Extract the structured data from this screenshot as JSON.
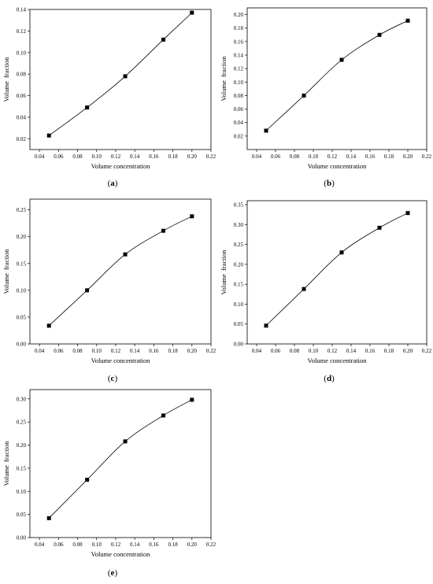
{
  "chart_data": [
    {
      "type": "line",
      "panel_label": "(a)",
      "xlabel": "Volume concentration",
      "ylabel": "Volume  fraction",
      "xlim": [
        0.03,
        0.22
      ],
      "ylim": [
        0.01,
        0.14
      ],
      "xticks": [
        "0.04",
        "0.06",
        "0.08",
        "0.10",
        "0.12",
        "0.14",
        "0.16",
        "0.18",
        "0.20",
        "0.22"
      ],
      "yticks": [
        "0.02",
        "0.04",
        "0.06",
        "0.08",
        "0.10",
        "0.12",
        "0.14"
      ],
      "x": [
        0.05,
        0.09,
        0.13,
        0.17,
        0.2
      ],
      "y": [
        0.023,
        0.049,
        0.078,
        0.112,
        0.137
      ],
      "marker": "square",
      "grid": false
    },
    {
      "type": "line",
      "panel_label": "(b)",
      "xlabel": "Volume concentration",
      "ylabel": "Volume  fraction",
      "xlim": [
        0.03,
        0.22
      ],
      "ylim": [
        0.0,
        0.21
      ],
      "xticks": [
        "0.04",
        "0.06",
        "0.08",
        "0.10",
        "0.12",
        "0.14",
        "0.16",
        "0.18",
        "0.20",
        "0.22"
      ],
      "yticks": [
        "0.02",
        "0.04",
        "0.06",
        "0.08",
        "0.10",
        "0.12",
        "0.14",
        "0.16",
        "0.18",
        "0.20"
      ],
      "x": [
        0.05,
        0.09,
        0.13,
        0.17,
        0.2
      ],
      "y": [
        0.028,
        0.08,
        0.133,
        0.17,
        0.191
      ],
      "marker": "square",
      "grid": false
    },
    {
      "type": "line",
      "panel_label": "(c)",
      "xlabel": "Volume concentration",
      "ylabel": "Volume  fraction",
      "xlim": [
        0.03,
        0.22
      ],
      "ylim": [
        0.0,
        0.27
      ],
      "xticks": [
        "0.04",
        "0.06",
        "0.08",
        "0.10",
        "0.12",
        "0.14",
        "0.16",
        "0.18",
        "0.20",
        "0.22"
      ],
      "yticks": [
        "0.00",
        "0.05",
        "0.10",
        "0.15",
        "0.20",
        "0.25"
      ],
      "x": [
        0.05,
        0.09,
        0.13,
        0.17,
        0.2
      ],
      "y": [
        0.034,
        0.1,
        0.167,
        0.211,
        0.238
      ],
      "marker": "square",
      "grid": false
    },
    {
      "type": "line",
      "panel_label": "(d)",
      "xlabel": "Volume concentration",
      "ylabel": "Volume  fraction",
      "xlim": [
        0.03,
        0.22
      ],
      "ylim": [
        0.0,
        0.36
      ],
      "xticks": [
        "0.04",
        "0.06",
        "0.08",
        "0.10",
        "0.12",
        "0.14",
        "0.16",
        "0.18",
        "0.20",
        "0.22"
      ],
      "yticks": [
        "0.00",
        "0.05",
        "0.10",
        "0.15",
        "0.20",
        "0.25",
        "0.30",
        "0.35"
      ],
      "x": [
        0.05,
        0.09,
        0.13,
        0.17,
        0.2
      ],
      "y": [
        0.046,
        0.138,
        0.23,
        0.292,
        0.329
      ],
      "marker": "square",
      "grid": false
    },
    {
      "type": "line",
      "panel_label": "(e)",
      "xlabel": "Volume concentration",
      "ylabel": "Volume  fraction",
      "xlim": [
        0.03,
        0.22
      ],
      "ylim": [
        0.0,
        0.32
      ],
      "xticks": [
        "0.04",
        "0.06",
        "0.08",
        "0.10",
        "0.12",
        "0.14",
        "0.16",
        "0.18",
        "0.20",
        "0.22"
      ],
      "yticks": [
        "0.00",
        "0.05",
        "0.10",
        "0.15",
        "0.20",
        "0.25",
        "0.30"
      ],
      "x": [
        0.05,
        0.09,
        0.13,
        0.17,
        0.2
      ],
      "y": [
        0.042,
        0.125,
        0.208,
        0.264,
        0.298
      ],
      "marker": "square",
      "grid": false
    }
  ]
}
